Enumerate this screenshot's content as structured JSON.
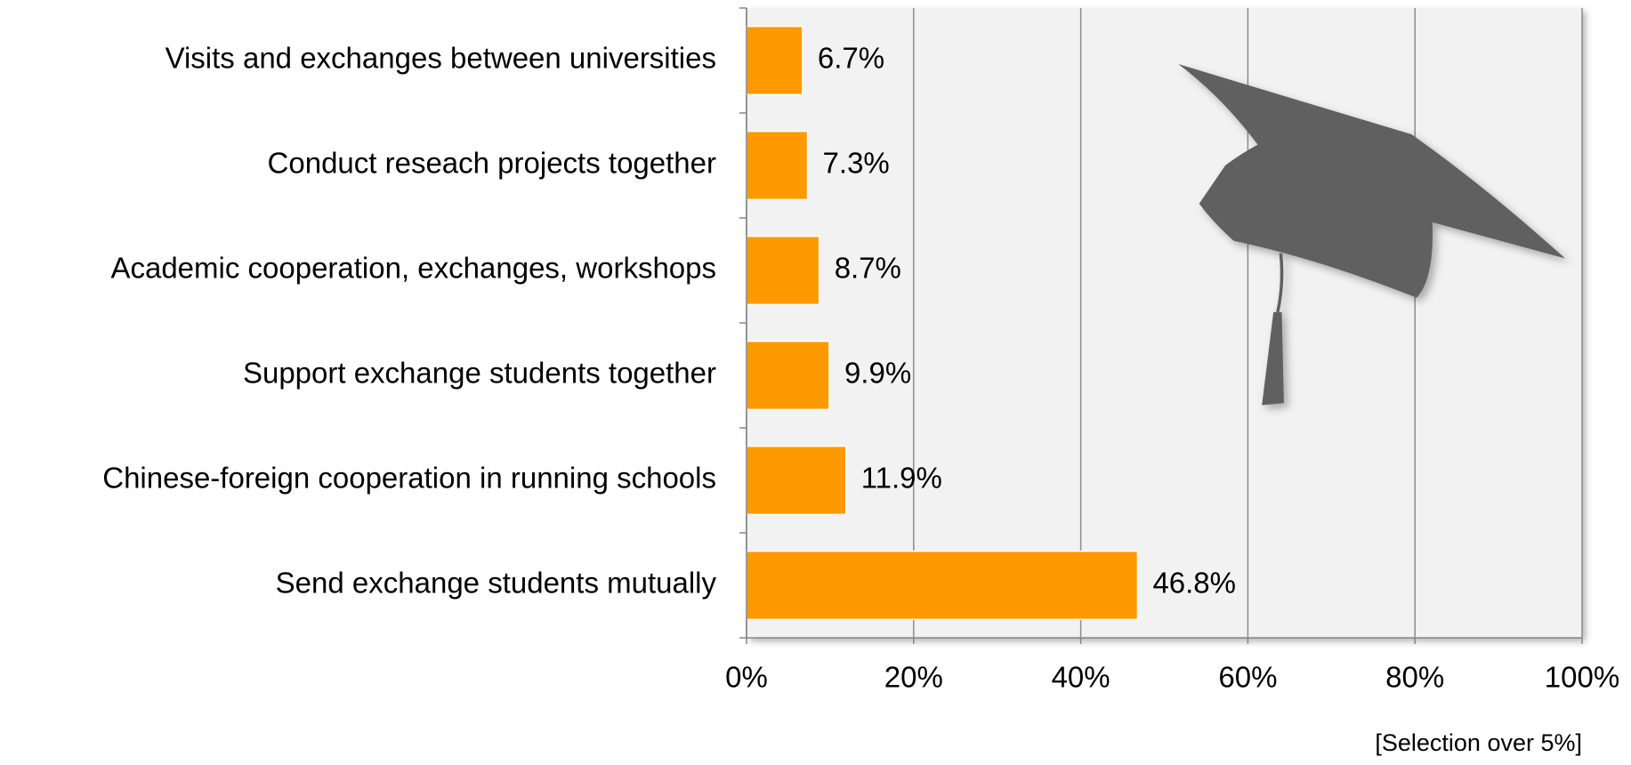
{
  "chart_data": {
    "type": "hbar",
    "categories": [
      "Visits and exchanges between universities",
      "Conduct reseach projects together",
      "Academic cooperation, exchanges, workshops",
      "Support exchange students together",
      "Chinese-foreign cooperation in running schools",
      "Send exchange students mutually"
    ],
    "values": [
      6.7,
      7.3,
      8.7,
      9.9,
      11.9,
      46.8
    ],
    "value_labels": [
      "6.7%",
      "7.3%",
      "8.7%",
      "9.9%",
      "11.9%",
      "46.8%"
    ],
    "color": "#ff9900",
    "xlim": [
      0,
      100
    ],
    "xticks": [
      {
        "value": 0,
        "label": "0%"
      },
      {
        "value": 20,
        "label": "20%"
      },
      {
        "value": 40,
        "label": "40%"
      },
      {
        "value": 60,
        "label": "60%"
      },
      {
        "value": 80,
        "label": "80%"
      },
      {
        "value": 100,
        "label": "100%"
      }
    ],
    "grid": true,
    "note": "[Selection over 5%]"
  }
}
